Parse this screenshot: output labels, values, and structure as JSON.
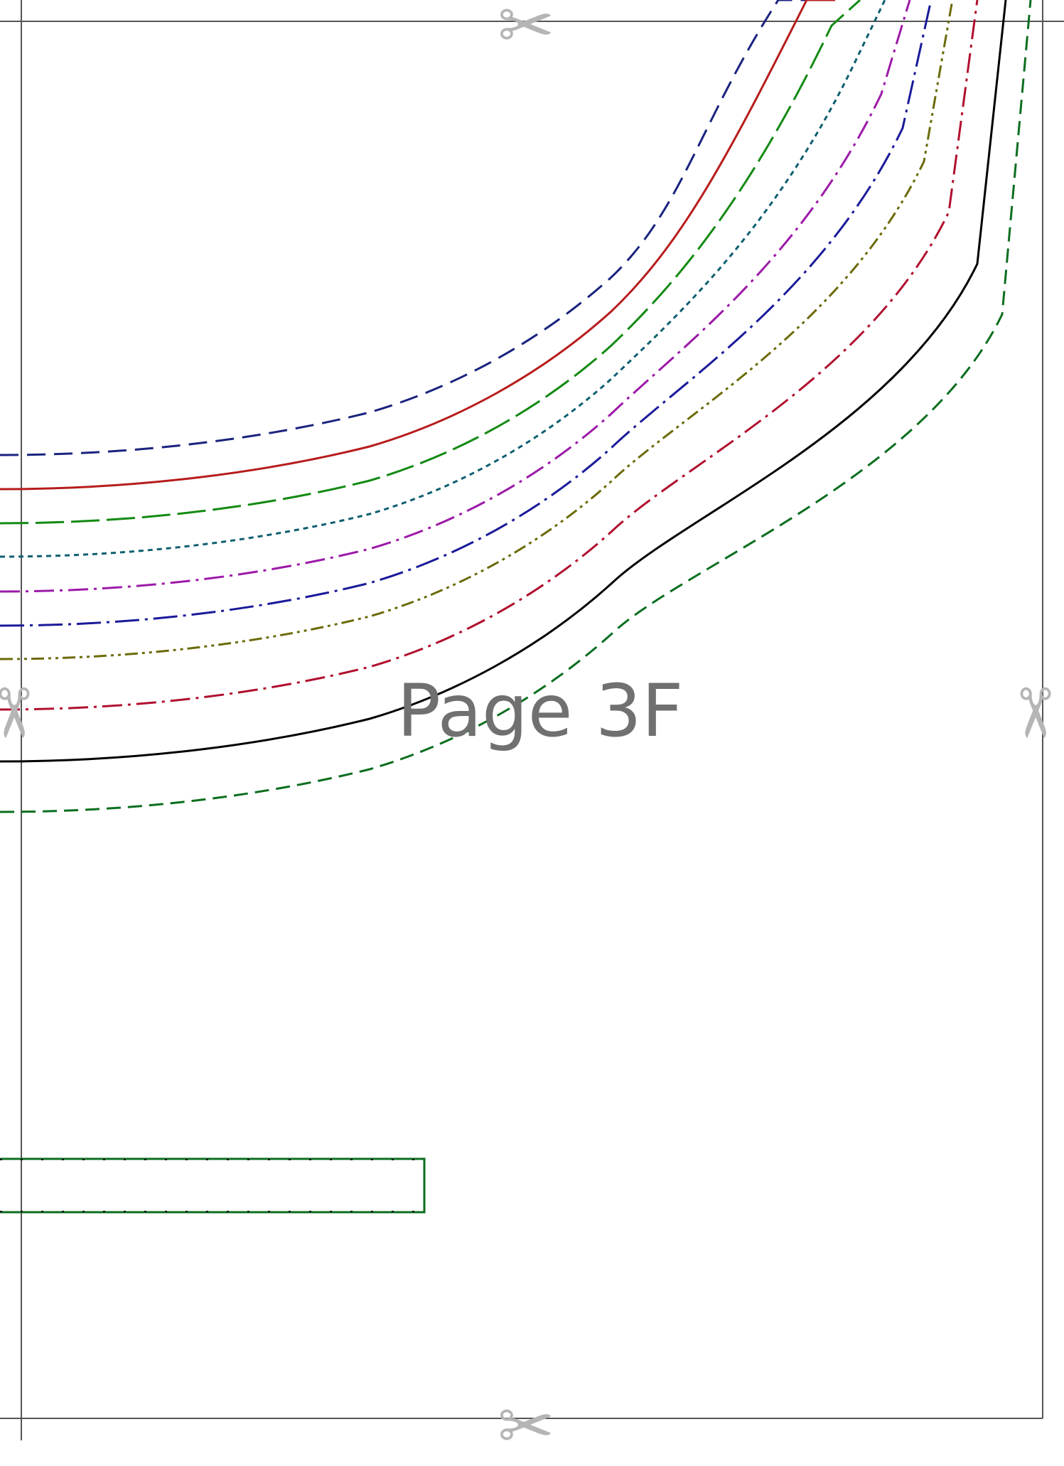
{
  "page": {
    "label": "Page 3F",
    "frame_color": "#555555",
    "scissor_glyph": "✂",
    "scissor_color": "#b5b5b5"
  },
  "icons": [
    "scissors-icon"
  ],
  "size_lines": [
    {
      "color": "#1a237e",
      "dash": "long-dash"
    },
    {
      "color": "#b71c1c",
      "dash": "solid"
    },
    {
      "color": "#138a13",
      "dash": "dash-long"
    },
    {
      "color": "#0d5f70",
      "dash": "short-dash"
    },
    {
      "color": "#9c1aa8",
      "dash": "dash-dot"
    },
    {
      "color": "#1a1a9a",
      "dash": "dash-dot-long"
    },
    {
      "color": "#6b6b0a",
      "dash": "dash-dot-dot"
    },
    {
      "color": "#b0102e",
      "dash": "dash-dot"
    },
    {
      "color": "#000000",
      "dash": "solid"
    },
    {
      "color": "#0b6e1f",
      "dash": "dash"
    }
  ],
  "rectangle": {
    "stroke": "#0b6e1f"
  }
}
